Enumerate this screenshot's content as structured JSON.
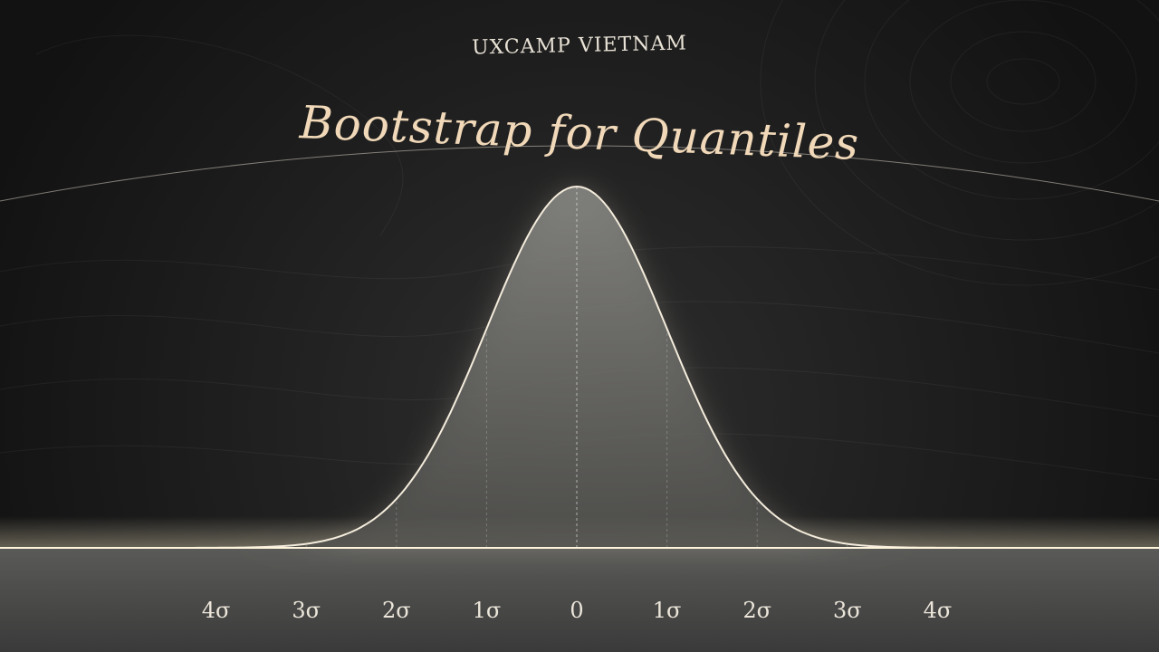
{
  "header": {
    "brand": "UXCAMP VIETNAM",
    "title": "Bootstrap for Quantiles"
  },
  "chart_data": {
    "type": "area",
    "x_tick_labels": [
      "4σ",
      "3σ",
      "2σ",
      "1σ",
      "0",
      "1σ",
      "2σ",
      "3σ",
      "4σ"
    ],
    "x_ticks": [
      -4,
      -3,
      -2,
      -1,
      0,
      1,
      2,
      3,
      4
    ],
    "xlim": [
      -4,
      4
    ],
    "ylim": [
      0,
      1
    ],
    "curve": "normal-distribution",
    "grid": "vertical-dashed-at-sigma",
    "colors": {
      "curve": "#f4ecdc",
      "title": "#f0d8b8",
      "background": "#1c1c1c",
      "baseline_glow": "#fff4d8"
    }
  }
}
